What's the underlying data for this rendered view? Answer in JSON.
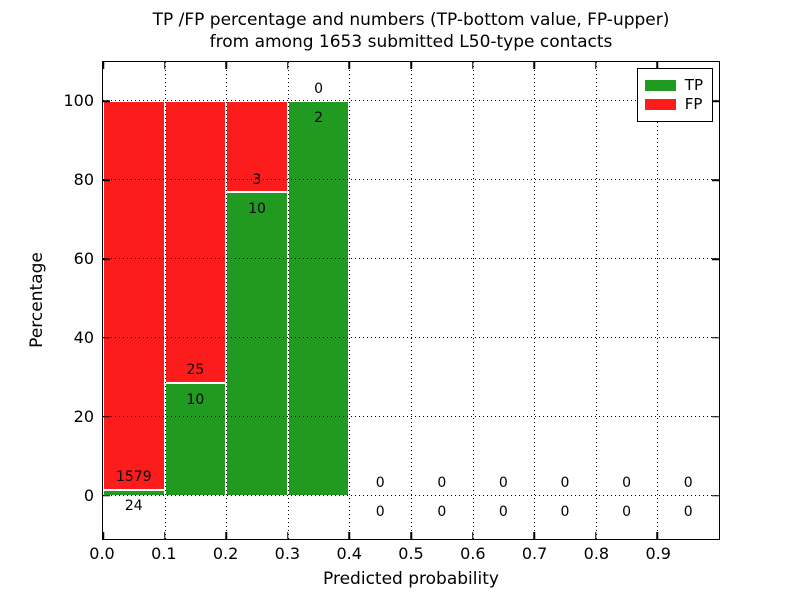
{
  "chart_data": {
    "type": "bar",
    "stacked": true,
    "title_lines": [
      "TP /FP percentage and numbers (TP-bottom value, FP-upper)",
      "from among 1653 submitted L50-type contacts"
    ],
    "xlabel": "Predicted probability",
    "ylabel": "Percentage",
    "xlim": [
      0.0,
      1.0
    ],
    "ylim": [
      -11,
      110
    ],
    "x_tick_values": [
      0.0,
      0.1,
      0.2,
      0.3,
      0.4,
      0.5,
      0.6,
      0.7,
      0.8,
      0.9
    ],
    "x_tick_labels": [
      "0.0",
      "0.1",
      "0.2",
      "0.3",
      "0.4",
      "0.5",
      "0.6",
      "0.7",
      "0.8",
      "0.9"
    ],
    "y_tick_values": [
      0,
      20,
      40,
      60,
      80,
      100
    ],
    "y_tick_labels": [
      "0",
      "20",
      "40",
      "60",
      "80",
      "100"
    ],
    "grid": "dotted",
    "bin_width": 0.1,
    "bin_starts": [
      0.0,
      0.1,
      0.2,
      0.3,
      0.4,
      0.5,
      0.6,
      0.7,
      0.8,
      0.9
    ],
    "series": [
      {
        "name": "TP",
        "color": "#219a21",
        "values": [
          24,
          10,
          10,
          2,
          0,
          0,
          0,
          0,
          0,
          0
        ]
      },
      {
        "name": "FP",
        "color": "#fd1c1c",
        "values": [
          1579,
          25,
          3,
          0,
          0,
          0,
          0,
          0,
          0,
          0
        ]
      }
    ],
    "bar_edge_color": "#ffffff",
    "background": "#ffffff",
    "legend": {
      "position": "upper right"
    }
  }
}
